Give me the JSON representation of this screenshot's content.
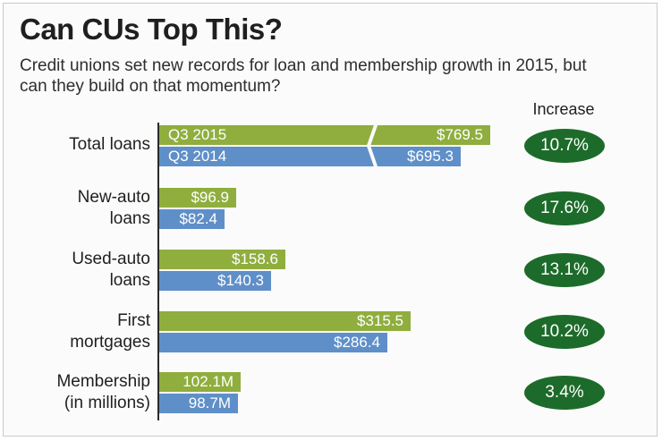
{
  "title": "Can CUs Top This?",
  "subtitle": "Credit unions set new records for loan and membership growth in 2015, but can they build on that momentum?",
  "increase_header": "Increase",
  "colors": {
    "q3_2015": "#8fae3e",
    "q3_2014": "#5f8fc8",
    "badge": "#1d6b2a"
  },
  "chart_data": {
    "type": "bar",
    "orientation": "horizontal",
    "title": "Can CUs Top This?",
    "subtitle": "Credit unions set new records for loan and membership growth in 2015, but can they build on that momentum?",
    "categories": [
      "Total loans",
      "New-auto loans",
      "Used-auto loans",
      "First mortgages",
      "Membership (in millions)"
    ],
    "category_lines": [
      [
        "Total loans"
      ],
      [
        "New-auto",
        "loans"
      ],
      [
        "Used-auto",
        "loans"
      ],
      [
        "First",
        "mortgages"
      ],
      [
        "Membership",
        "(in millions)"
      ]
    ],
    "series": [
      {
        "name": "Q3 2015",
        "values": [
          769.5,
          96.9,
          158.6,
          315.5,
          102.1
        ],
        "labels": [
          "$769.5",
          "$96.9",
          "$158.6",
          "$315.5",
          "102.1M"
        ]
      },
      {
        "name": "Q3 2014",
        "values": [
          695.3,
          82.4,
          140.3,
          286.4,
          98.7
        ],
        "labels": [
          "$695.3",
          "$82.4",
          "$140.3",
          "$286.4",
          "98.7M"
        ]
      }
    ],
    "increase_header": "Increase",
    "increase": [
      "10.7%",
      "17.6%",
      "13.1%",
      "10.2%",
      "3.4%"
    ],
    "axis_break_category": "Total loans",
    "legend": "inline"
  }
}
